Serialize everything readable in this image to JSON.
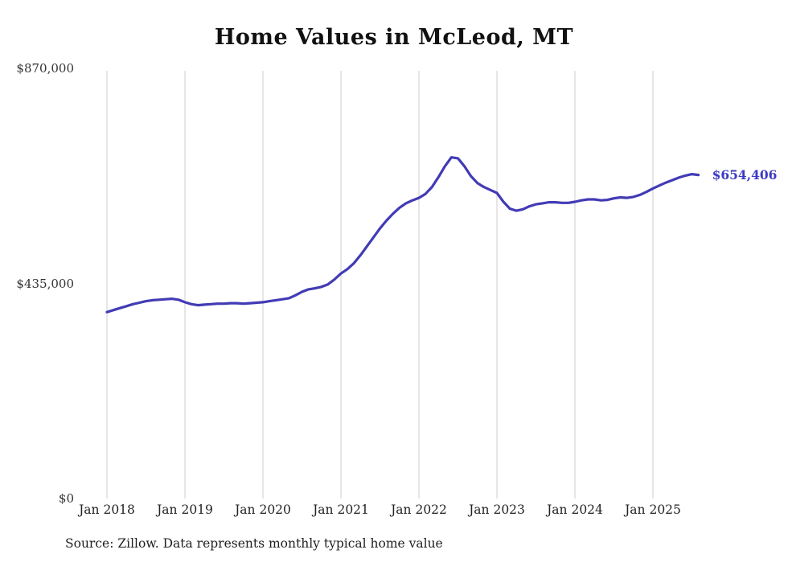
{
  "chart_data": {
    "type": "line",
    "title": "Home Values in McLeod, MT",
    "series_name": "Monthly typical home value",
    "xlabel": "",
    "ylabel": "",
    "ylim": [
      0,
      870000
    ],
    "grid": "vertical-only",
    "legend": "none",
    "line_color": "#423BB5",
    "end_label_color": "#3D3BC4",
    "gridline_color": "#cccccc",
    "y_ticks": [
      "$0",
      "$435,000",
      "$870,000"
    ],
    "x_ticks": [
      "Jan 2018",
      "Jan 2019",
      "Jan 2020",
      "Jan 2021",
      "Jan 2022",
      "Jan 2023",
      "Jan 2024",
      "Jan 2025"
    ],
    "x_tick_months": [
      0,
      12,
      24,
      36,
      48,
      60,
      72,
      84
    ],
    "end_label": "$654,406",
    "latest_value": 654406,
    "months": [
      "2018-01",
      "2018-02",
      "2018-03",
      "2018-04",
      "2018-05",
      "2018-06",
      "2018-07",
      "2018-08",
      "2018-09",
      "2018-10",
      "2018-11",
      "2018-12",
      "2019-01",
      "2019-02",
      "2019-03",
      "2019-04",
      "2019-05",
      "2019-06",
      "2019-07",
      "2019-08",
      "2019-09",
      "2019-10",
      "2019-11",
      "2019-12",
      "2020-01",
      "2020-02",
      "2020-03",
      "2020-04",
      "2020-05",
      "2020-06",
      "2020-07",
      "2020-08",
      "2020-09",
      "2020-10",
      "2020-11",
      "2020-12",
      "2021-01",
      "2021-02",
      "2021-03",
      "2021-04",
      "2021-05",
      "2021-06",
      "2021-07",
      "2021-08",
      "2021-09",
      "2021-10",
      "2021-11",
      "2021-12",
      "2022-01",
      "2022-02",
      "2022-03",
      "2022-04",
      "2022-05",
      "2022-06",
      "2022-07",
      "2022-08",
      "2022-09",
      "2022-10",
      "2022-11",
      "2022-12",
      "2023-01",
      "2023-02",
      "2023-03",
      "2023-04",
      "2023-05",
      "2023-06",
      "2023-07",
      "2023-08",
      "2023-09",
      "2023-10",
      "2023-11",
      "2023-12",
      "2024-01",
      "2024-02",
      "2024-03",
      "2024-04",
      "2024-05",
      "2024-06",
      "2024-07",
      "2024-08",
      "2024-09",
      "2024-10",
      "2024-11",
      "2024-12",
      "2025-01",
      "2025-02",
      "2025-03",
      "2025-04",
      "2025-05",
      "2025-06",
      "2025-07",
      "2025-08"
    ],
    "values": [
      377000,
      381000,
      385000,
      389000,
      393000,
      396000,
      399000,
      401000,
      402000,
      403000,
      404000,
      402000,
      397000,
      393000,
      391000,
      392000,
      393000,
      394000,
      394000,
      395000,
      395000,
      394000,
      395000,
      396000,
      397000,
      399000,
      401000,
      403000,
      405000,
      411000,
      418000,
      423000,
      425000,
      428000,
      433000,
      443000,
      455000,
      464000,
      476000,
      492000,
      510000,
      528000,
      546000,
      562000,
      576000,
      588000,
      597000,
      603000,
      608000,
      616000,
      630000,
      650000,
      672000,
      690000,
      688000,
      672000,
      652000,
      638000,
      630000,
      624000,
      618000,
      600000,
      586000,
      582000,
      585000,
      591000,
      595000,
      597000,
      599000,
      599000,
      598000,
      598000,
      600000,
      603000,
      605000,
      605000,
      603000,
      604000,
      607000,
      609000,
      608000,
      610000,
      614000,
      620000,
      627000,
      633000,
      639000,
      644000,
      649000,
      653000,
      656000,
      654406
    ]
  },
  "source_note": "Source: Zillow. Data represents monthly typical home value"
}
